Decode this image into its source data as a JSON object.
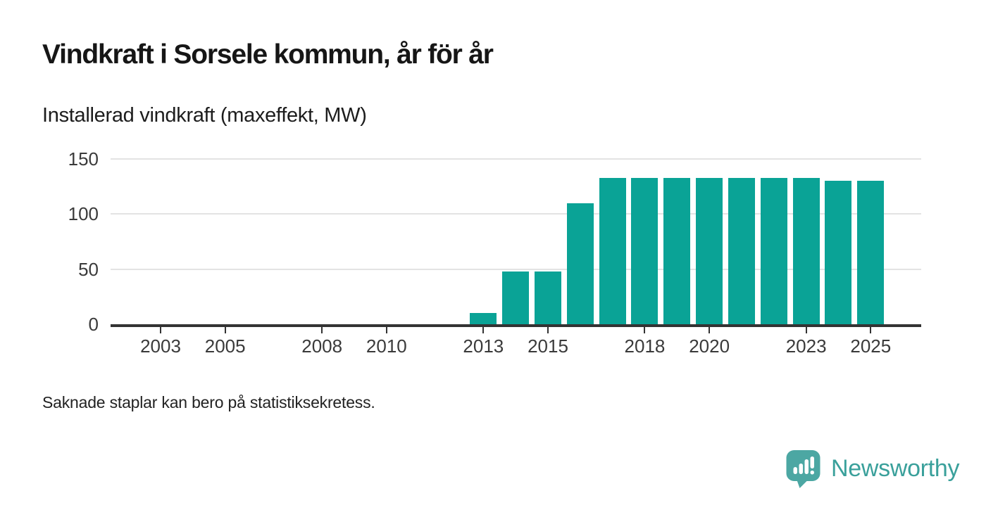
{
  "header": {
    "title": "Vindkraft i Sorsele kommun, år för år",
    "subtitle": "Installerad vindkraft (maxeffekt, MW)"
  },
  "chart_data": {
    "type": "bar",
    "title": "Vindkraft i Sorsele kommun, år för år",
    "ylabel": "Installerad vindkraft (maxeffekt, MW)",
    "unit": "MW",
    "categories": [
      2002,
      2003,
      2004,
      2005,
      2006,
      2007,
      2008,
      2009,
      2010,
      2011,
      2012,
      2013,
      2014,
      2015,
      2016,
      2017,
      2018,
      2019,
      2020,
      2021,
      2022,
      2023,
      2024,
      2025
    ],
    "values": [
      null,
      null,
      null,
      null,
      null,
      null,
      null,
      null,
      null,
      null,
      null,
      10,
      48,
      48,
      110,
      133,
      133,
      133,
      133,
      133,
      133,
      133,
      130,
      130
    ],
    "ylim": [
      0,
      150
    ],
    "yticks": [
      0,
      50,
      100,
      150
    ],
    "xticks": [
      2003,
      2005,
      2008,
      2010,
      2013,
      2015,
      2018,
      2020,
      2023,
      2025
    ],
    "grid": true,
    "legend_position": "none",
    "bar_color": "#0aa396",
    "missing_data_note": "Saknade staplar kan bero på statistiksekretess."
  },
  "footnote": {
    "text": "Saknade staplar kan bero på statistiksekretess."
  },
  "branding": {
    "name": "Newsworthy",
    "icon": "newsworthy-speech-bubble-bar-chart-icon",
    "wordmark_color": "#3aa09b",
    "icon_color": "#4ca7a3"
  },
  "colors": {
    "bar": "#0aa396",
    "gridline": "#e3e3e3",
    "axis": "#333333",
    "title_text": "#161616",
    "background": "#ffffff"
  }
}
